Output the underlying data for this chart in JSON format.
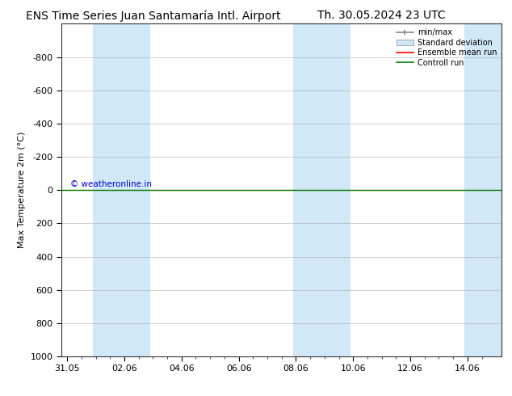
{
  "title_left": "ENS Time Series Juan Santamaría Intl. Airport",
  "title_right": "Th. 30.05.2024 23 UTC",
  "ylabel": "Max Temperature 2m (°C)",
  "ylim_top": -1000,
  "ylim_bottom": 1000,
  "yticks": [
    -800,
    -600,
    -400,
    -200,
    0,
    200,
    400,
    600,
    800,
    1000
  ],
  "xtick_labels": [
    "31.05",
    "02.06",
    "04.06",
    "06.06",
    "08.06",
    "10.06",
    "12.06",
    "14.06"
  ],
  "xtick_positions": [
    0,
    2,
    4,
    6,
    8,
    10,
    12,
    14
  ],
  "xlim": [
    -0.2,
    15.2
  ],
  "shaded_bands": [
    {
      "x_start": 0.9,
      "x_end": 2.9
    },
    {
      "x_start": 7.9,
      "x_end": 9.9
    },
    {
      "x_start": 13.9,
      "x_end": 15.2
    }
  ],
  "horizontal_line_y": 0,
  "line_color_green": "#008000",
  "line_color_red": "#ff0000",
  "background_color": "#ffffff",
  "plot_bg_color": "#ffffff",
  "shade_color": "#d0e8f8",
  "watermark_text": "© weatheronline.in",
  "watermark_color": "#0000cc",
  "legend_entries": [
    "min/max",
    "Standard deviation",
    "Ensemble mean run",
    "Controll run"
  ],
  "title_fontsize": 10,
  "axis_fontsize": 8,
  "tick_fontsize": 8
}
